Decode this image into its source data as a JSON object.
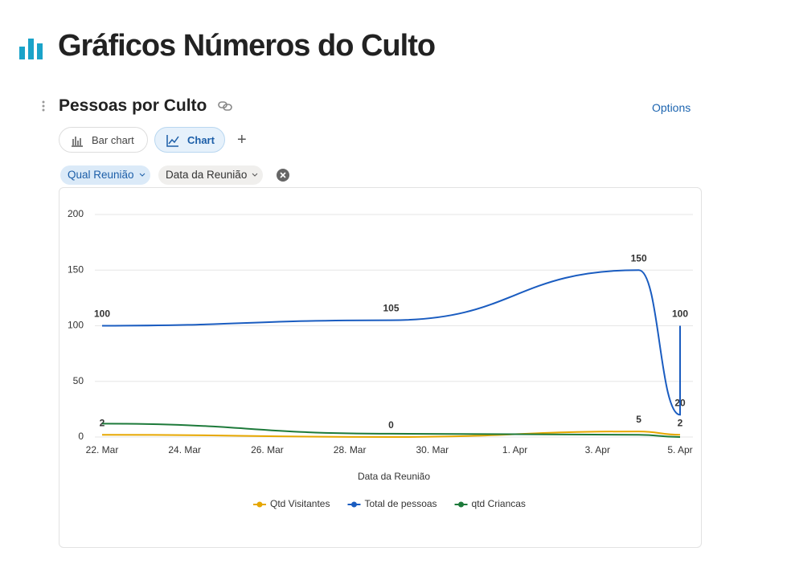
{
  "page": {
    "title": "Gráficos Números do Culto",
    "view_title": "Pessoas por Culto",
    "options": "Options",
    "tabs": [
      "Bar chart",
      "Chart"
    ],
    "filters": [
      "Qual Reunião",
      "Data da Reunião"
    ]
  },
  "chart_data": {
    "type": "line",
    "x_label": "Data da Reunião",
    "x": [
      "22. Mar",
      "29. Mar",
      "4. Apr",
      "5. Apr",
      "5. Apr"
    ],
    "xlim": [
      "22. Mar",
      "5. Apr"
    ],
    "xticks": [
      "22. Mar",
      "24. Mar",
      "26. Mar",
      "28. Mar",
      "30. Mar",
      "1. Apr",
      "3. Apr",
      "5. Apr"
    ],
    "ylim": [
      0,
      200
    ],
    "yticks": [
      0,
      50,
      100,
      150,
      200
    ],
    "grid": true,
    "legend": "bottom",
    "series": [
      {
        "name": "Qtd Visitantes",
        "color": "#e6a700",
        "values": [
          2,
          0,
          5,
          2,
          null
        ],
        "labels": true
      },
      {
        "name": "Total de pessoas",
        "color": "#1a5cc0",
        "values": [
          100,
          105,
          150,
          20,
          100
        ],
        "labels": true
      },
      {
        "name": "qtd Criancas",
        "color": "#1d7a3a",
        "values": [
          12,
          3,
          2,
          0,
          null
        ],
        "labels": false
      }
    ]
  }
}
